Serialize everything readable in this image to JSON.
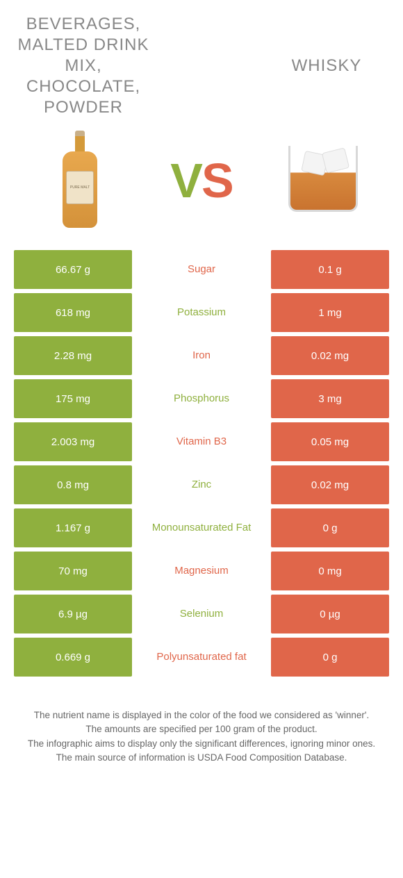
{
  "colors": {
    "left_bg": "#8fb03e",
    "right_bg": "#e0664a",
    "title_color": "#888888",
    "text_cell_color": "#ffffff",
    "footer_color": "#666666"
  },
  "titles": {
    "left": "Beverages, Malted drink mix, chocolate, powder",
    "right": "Whisky"
  },
  "vs": {
    "v": "V",
    "s": "S"
  },
  "left_image": {
    "name": "whisky-bottle",
    "label_text": "PURE MALT"
  },
  "right_image": {
    "name": "whisky-glass"
  },
  "rows": [
    {
      "left": "66.67 g",
      "label": "Sugar",
      "right": "0.1 g",
      "winner": "left"
    },
    {
      "left": "618 mg",
      "label": "Potassium",
      "right": "1 mg",
      "winner": "right"
    },
    {
      "left": "2.28 mg",
      "label": "Iron",
      "right": "0.02 mg",
      "winner": "left"
    },
    {
      "left": "175 mg",
      "label": "Phosphorus",
      "right": "3 mg",
      "winner": "right"
    },
    {
      "left": "2.003 mg",
      "label": "Vitamin B3",
      "right": "0.05 mg",
      "winner": "left"
    },
    {
      "left": "0.8 mg",
      "label": "Zinc",
      "right": "0.02 mg",
      "winner": "right"
    },
    {
      "left": "1.167 g",
      "label": "Monounsaturated Fat",
      "right": "0 g",
      "winner": "right"
    },
    {
      "left": "70 mg",
      "label": "Magnesium",
      "right": "0 mg",
      "winner": "left"
    },
    {
      "left": "6.9 µg",
      "label": "Selenium",
      "right": "0 µg",
      "winner": "right"
    },
    {
      "left": "0.669 g",
      "label": "Polyunsaturated fat",
      "right": "0 g",
      "winner": "left"
    }
  ],
  "footer": {
    "line1": "The nutrient name is displayed in the color of the food we considered as 'winner'.",
    "line2": "The amounts are specified per 100 gram of the product.",
    "line3": "The infographic aims to display only the significant differences, ignoring minor ones.",
    "line4": "The main source of information is USDA Food Composition Database."
  }
}
